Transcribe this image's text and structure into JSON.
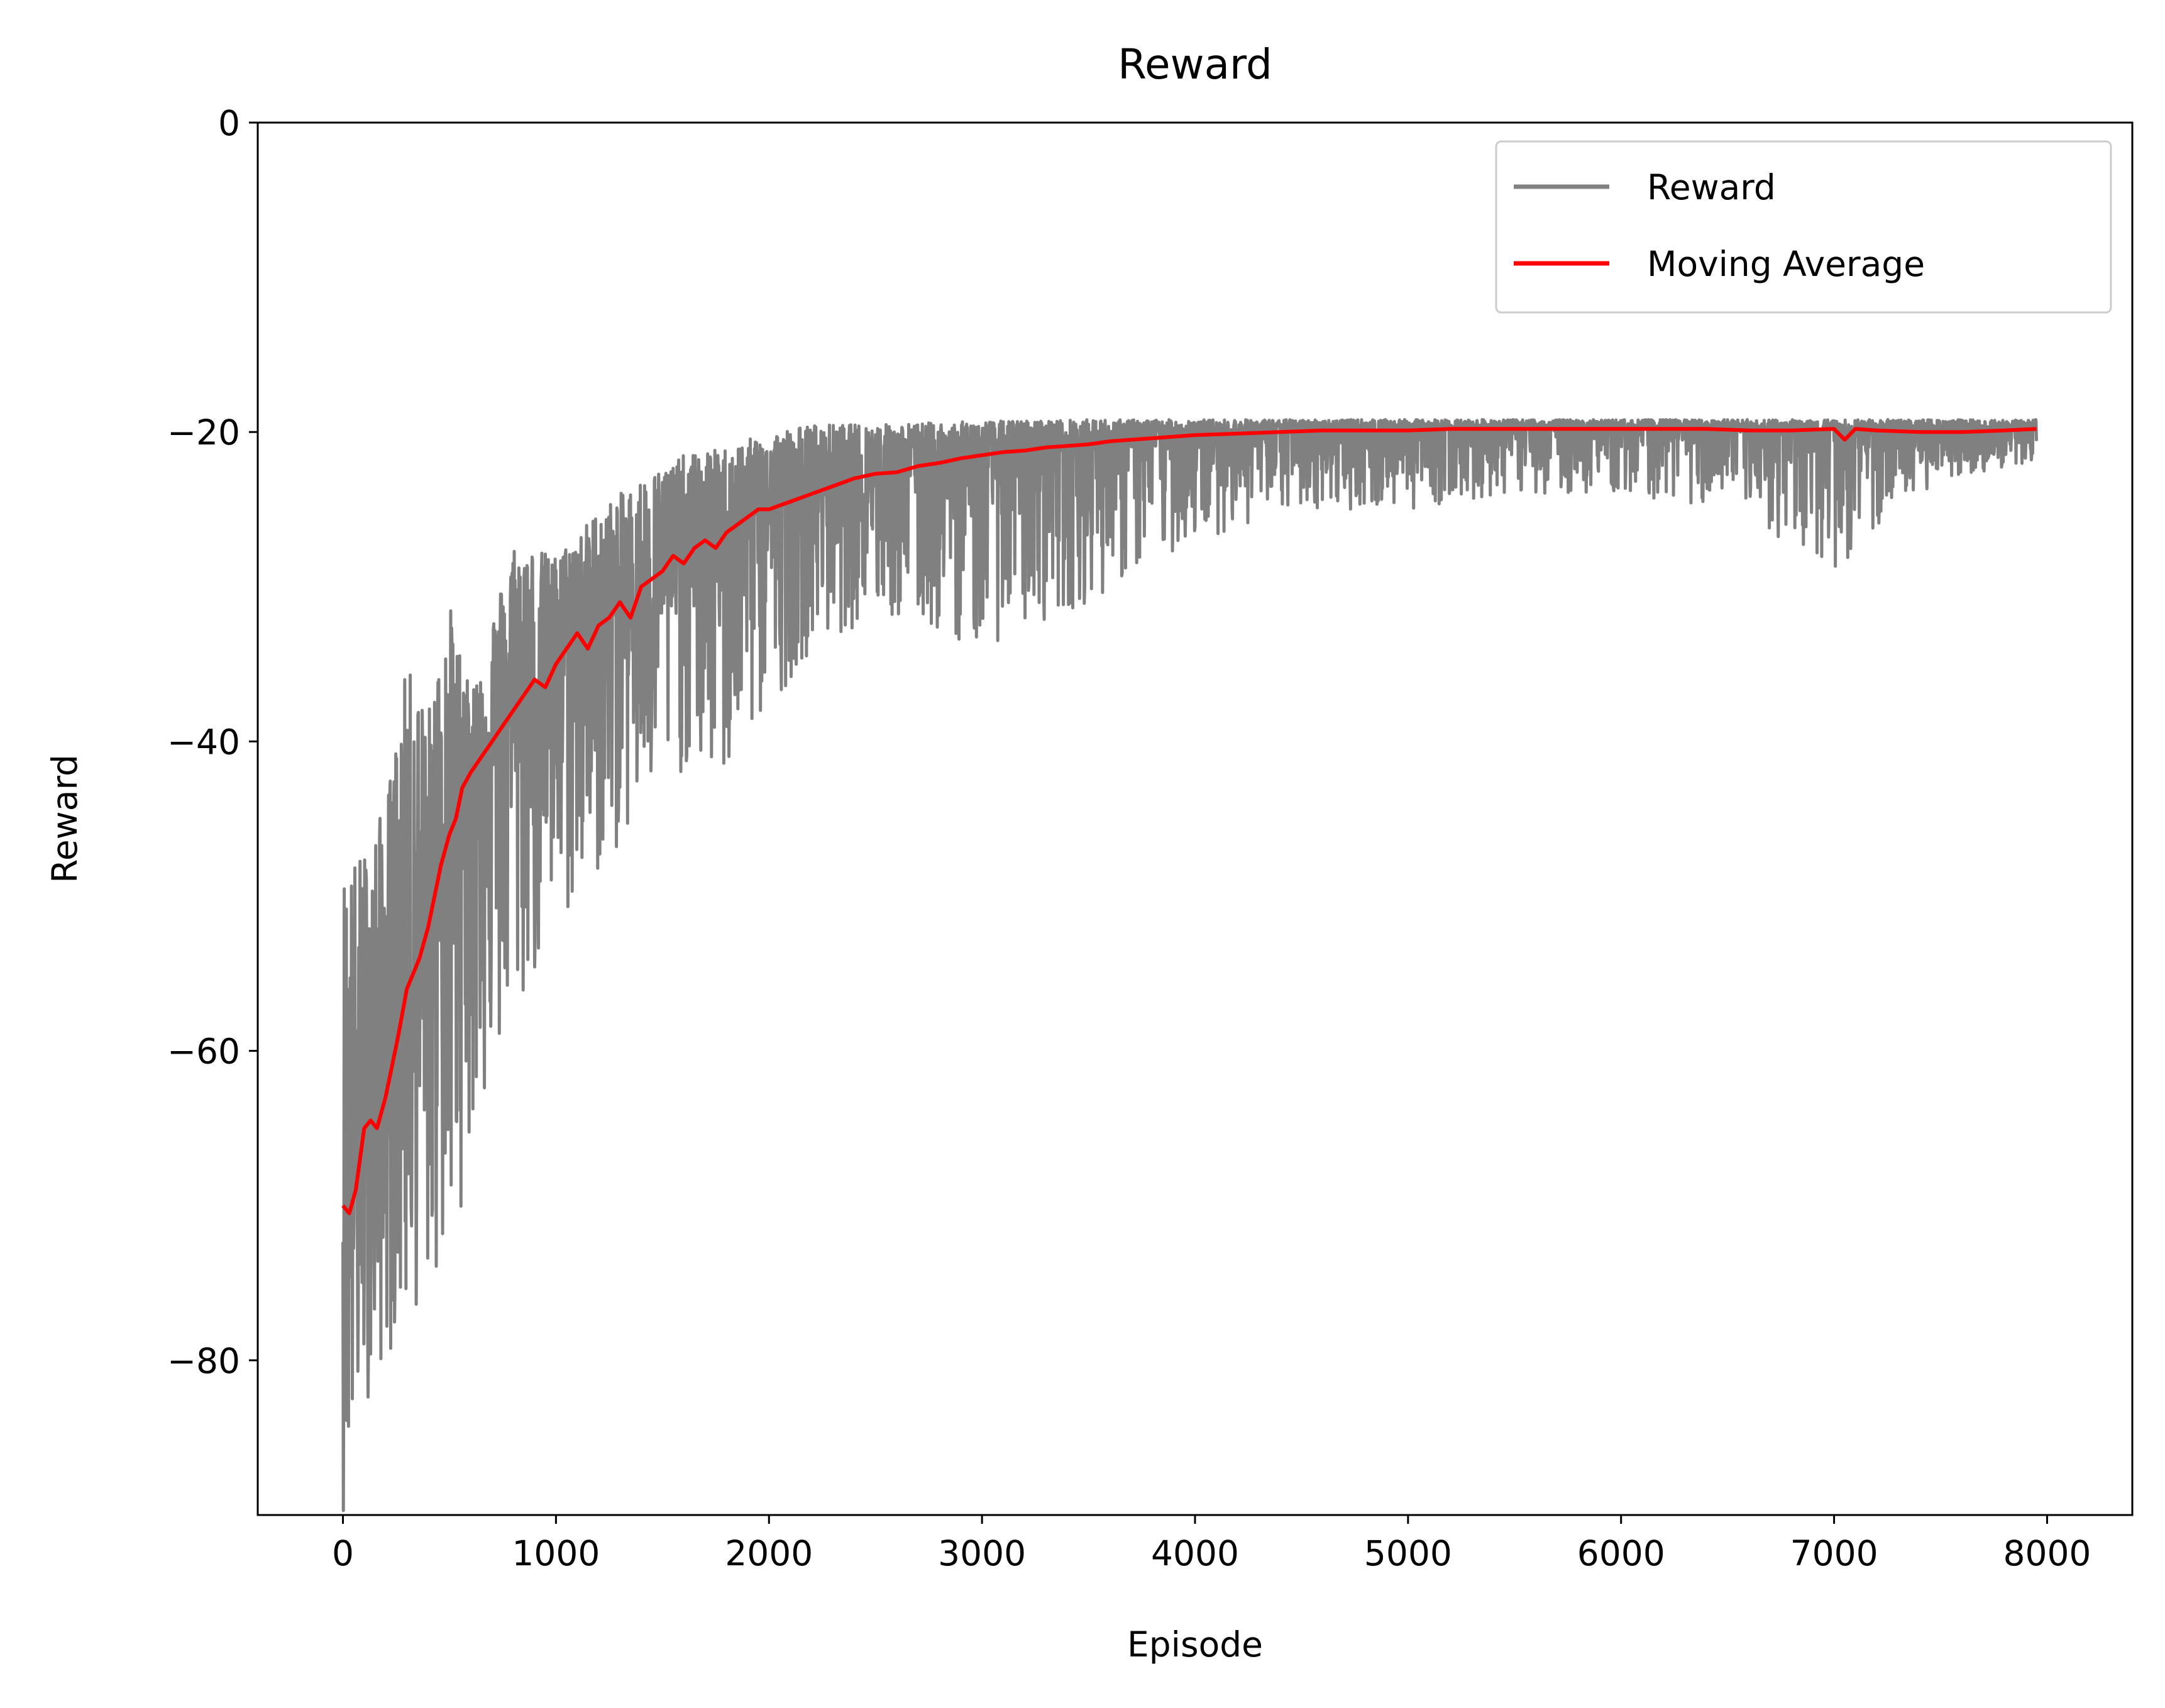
{
  "chart_data": {
    "type": "line",
    "title": "Reward",
    "xlabel": "Episode",
    "ylabel": "Reward",
    "xlim": [
      -400,
      8400
    ],
    "ylim": [
      -90,
      0
    ],
    "xticks": [
      0,
      1000,
      2000,
      3000,
      4000,
      5000,
      6000,
      7000,
      8000
    ],
    "xtick_labels": [
      "0",
      "1000",
      "2000",
      "3000",
      "4000",
      "5000",
      "6000",
      "7000",
      "8000"
    ],
    "yticks": [
      0,
      -20,
      -40,
      -60,
      -80
    ],
    "ytick_labels": [
      "0",
      "−20",
      "−40",
      "−60",
      "−80"
    ],
    "grid": false,
    "legend_position": "top-right",
    "series": [
      {
        "name": "Reward",
        "color": "#808080",
        "style": "noisy band around moving average",
        "x": [
          0,
          100,
          200,
          300,
          400,
          500,
          600,
          800,
          1000,
          1200,
          1400,
          1600,
          1800,
          2000,
          2200,
          2500,
          3000,
          3500,
          4000,
          4500,
          5000,
          5500,
          6000,
          6500,
          7000,
          7500,
          7950
        ],
        "upper": [
          -48,
          -47,
          -44,
          -35,
          -38,
          -31,
          -37,
          -27,
          -28,
          -25,
          -23,
          -21.5,
          -21,
          -20,
          -19.5,
          -19.5,
          -19.3,
          -19.2,
          -19.2,
          -19.2,
          -19.2,
          -19.2,
          -19.2,
          -19.2,
          -19.2,
          -19.2,
          -19.2
        ],
        "lower": [
          -90,
          -83,
          -80,
          -78,
          -76,
          -75,
          -66,
          -59,
          -53,
          -49,
          -45,
          -42,
          -43,
          -38,
          -34,
          -32,
          -34,
          -31,
          -27,
          -25,
          -25,
          -24,
          -24,
          -25,
          -29,
          -23,
          -22
        ]
      },
      {
        "name": "Moving Average",
        "color": "#ff0000",
        "x": [
          0,
          30,
          60,
          100,
          130,
          160,
          200,
          230,
          260,
          300,
          330,
          360,
          400,
          430,
          460,
          500,
          530,
          560,
          600,
          650,
          700,
          750,
          800,
          850,
          900,
          950,
          1000,
          1050,
          1100,
          1150,
          1200,
          1250,
          1300,
          1350,
          1400,
          1450,
          1500,
          1550,
          1600,
          1650,
          1700,
          1750,
          1800,
          1850,
          1900,
          1950,
          2000,
          2100,
          2200,
          2300,
          2400,
          2500,
          2600,
          2700,
          2800,
          2900,
          3000,
          3100,
          3200,
          3300,
          3400,
          3500,
          3600,
          3700,
          3800,
          3900,
          4000,
          4200,
          4400,
          4600,
          4800,
          5000,
          5200,
          5400,
          5600,
          5800,
          6000,
          6200,
          6400,
          6600,
          6800,
          7000,
          7050,
          7100,
          7200,
          7400,
          7600,
          7800,
          7950
        ],
        "values": [
          -70,
          -70.5,
          -69,
          -65,
          -64.5,
          -65,
          -63,
          -61,
          -59,
          -56,
          -55,
          -54,
          -52,
          -50,
          -48,
          -46,
          -45,
          -43,
          -42,
          -41,
          -40,
          -39,
          -38,
          -37,
          -36,
          -36.5,
          -35,
          -34,
          -33,
          -34,
          -32.5,
          -32,
          -31,
          -32,
          -30,
          -29.5,
          -29,
          -28,
          -28.5,
          -27.5,
          -27,
          -27.5,
          -26.5,
          -26,
          -25.5,
          -25,
          -25,
          -24.5,
          -24,
          -23.5,
          -23,
          -22.7,
          -22.6,
          -22.2,
          -22,
          -21.7,
          -21.5,
          -21.3,
          -21.2,
          -21,
          -20.9,
          -20.8,
          -20.6,
          -20.5,
          -20.4,
          -20.3,
          -20.2,
          -20.1,
          -20,
          -19.9,
          -19.9,
          -19.9,
          -19.8,
          -19.8,
          -19.8,
          -19.8,
          -19.8,
          -19.8,
          -19.8,
          -19.9,
          -19.9,
          -19.8,
          -20.5,
          -19.8,
          -19.9,
          -20,
          -20,
          -19.9,
          -19.8
        ]
      }
    ]
  }
}
